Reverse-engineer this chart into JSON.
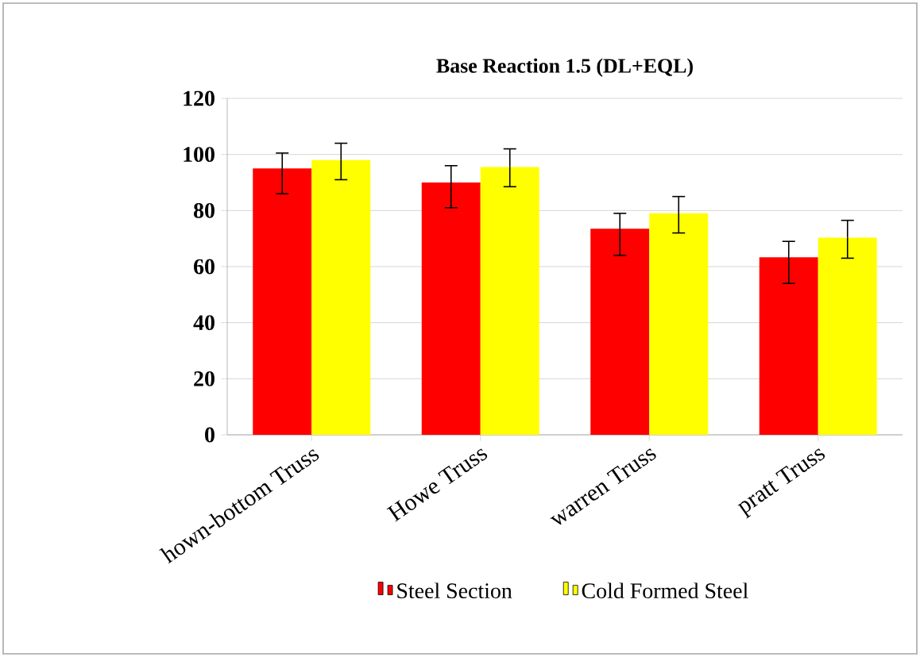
{
  "chart_data": {
    "type": "bar",
    "title": "Base Reaction 1.5 (DL+EQL)",
    "categories": [
      "hown-bottom Truss",
      "Howe Truss",
      "warren Truss",
      "pratt Truss"
    ],
    "series": [
      {
        "name": "Steel Section",
        "color": "#ff0000",
        "values": [
          95,
          90,
          73.5,
          63.3
        ],
        "errors": [
          [
            86,
            100.5
          ],
          [
            81,
            96
          ],
          [
            64,
            79
          ],
          [
            54,
            69
          ]
        ]
      },
      {
        "name": "Cold Formed Steel",
        "color": "#ffff00",
        "values": [
          98,
          95.5,
          79,
          70.3
        ],
        "errors": [
          [
            91,
            104
          ],
          [
            88.5,
            102
          ],
          [
            72,
            85
          ],
          [
            63,
            76.5
          ]
        ]
      }
    ],
    "ylim": [
      0,
      120
    ],
    "yticks": [
      0,
      20,
      40,
      60,
      80,
      100,
      120
    ],
    "grid": "y",
    "legend": "bottom"
  }
}
